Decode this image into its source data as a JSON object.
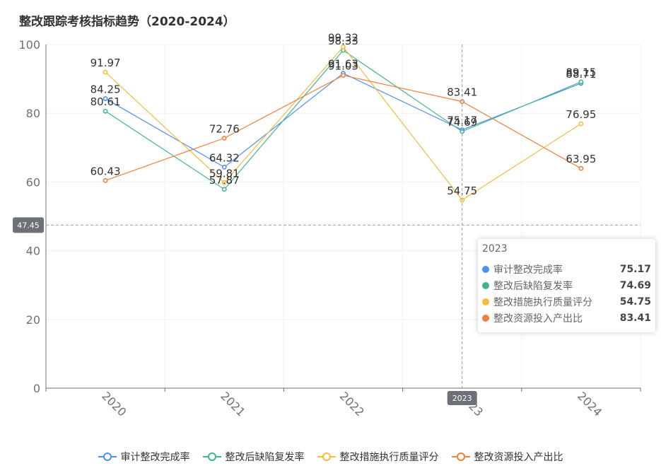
{
  "chart_data": {
    "type": "line",
    "title": "整改跟踪考核指标趋势（2020-2024）",
    "categories": [
      "2020",
      "2021",
      "2022",
      "2023",
      "2024"
    ],
    "ylim": [
      0,
      100
    ],
    "yticks": [
      0,
      20,
      40,
      60,
      80,
      100
    ],
    "grid": true,
    "legend_position": "bottom-center",
    "series": [
      {
        "name": "审计整改完成率",
        "color": "#4f8ff0",
        "values": [
          84.25,
          64.32,
          91.63,
          75.17,
          88.71
        ]
      },
      {
        "name": "整改后缺陷复发率",
        "color": "#3fb58f",
        "values": [
          80.61,
          57.87,
          98.33,
          74.69,
          89.15
        ]
      },
      {
        "name": "整改措施执行质量评分",
        "color": "#f4bc3d",
        "values": [
          91.97,
          59.81,
          99.32,
          54.75,
          76.95
        ]
      },
      {
        "name": "整改资源投入产出比",
        "color": "#f07f3b",
        "values": [
          60.43,
          72.76,
          91.03,
          83.41,
          63.95
        ]
      }
    ],
    "pointer": {
      "category": "2023",
      "y_value": 47.45,
      "x_label": "2023",
      "y_label": "47.45"
    },
    "tooltip": {
      "title": "2023",
      "rows": [
        {
          "name": "审计整改完成率",
          "value": "75.17",
          "color": "#4f8ff0"
        },
        {
          "name": "整改后缺陷复发率",
          "value": "74.69",
          "color": "#3fb58f"
        },
        {
          "name": "整改措施执行质量评分",
          "value": "54.75",
          "color": "#f4bc3d"
        },
        {
          "name": "整改资源投入产出比",
          "value": "83.41",
          "color": "#f07f3b"
        }
      ]
    }
  }
}
